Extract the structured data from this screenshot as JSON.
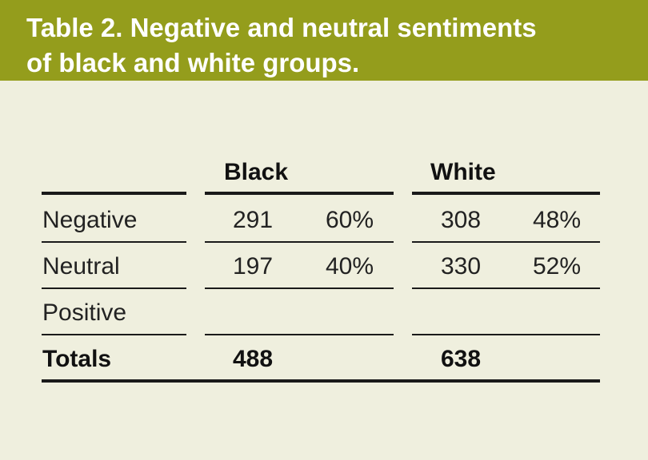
{
  "header": {
    "title_lines": [
      "Table 2. Negative and neutral sentiments",
      "of black and white groups."
    ]
  },
  "table": {
    "groups": [
      "Black",
      "White"
    ],
    "rows": [
      {
        "label": "Negative",
        "black": {
          "count": 291,
          "share": "60%"
        },
        "white": {
          "count": 308,
          "share": "48%"
        }
      },
      {
        "label": "Neutral",
        "black": {
          "count": 197,
          "share": "40%"
        },
        "white": {
          "count": 330,
          "share": "52%"
        }
      },
      {
        "label": "Positive"
      }
    ],
    "totals": {
      "label": "Totals",
      "black": 488,
      "white": 638
    }
  }
}
